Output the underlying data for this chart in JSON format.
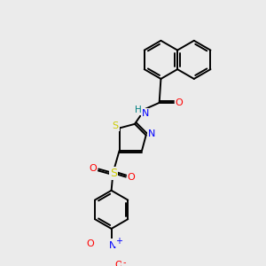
{
  "bg_color": "#ebebeb",
  "bond_color": "#000000",
  "atom_colors": {
    "N": "#0000ff",
    "O": "#ff0000",
    "S": "#cccc00",
    "H": "#008080"
  },
  "lw": 1.4,
  "r_hex": 25,
  "r_pent": 20
}
